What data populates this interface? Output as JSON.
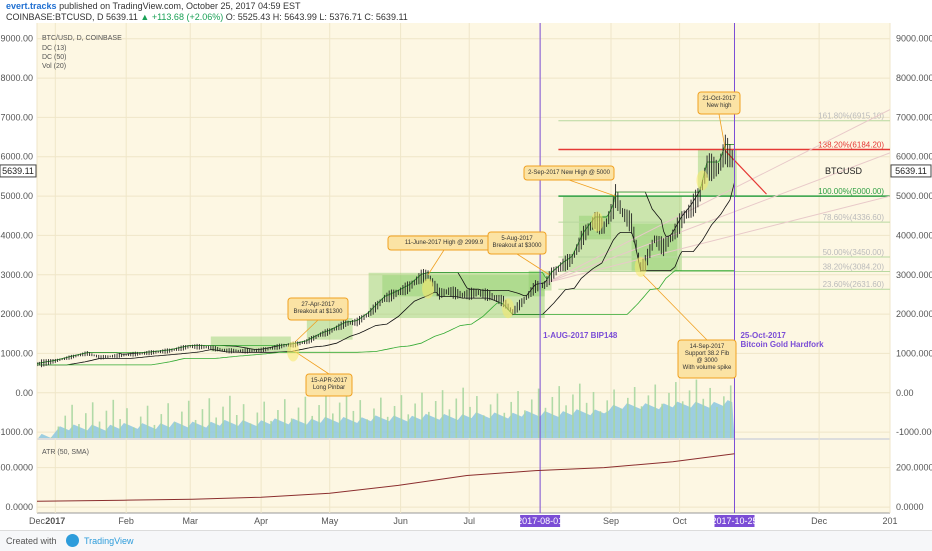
{
  "header": {
    "author": "evert.tracks",
    "published": "published on TradingView.com, October 25, 2017 04:59 EST",
    "symbol": "COINBASE:BTCUSD, D",
    "last": "5639.11",
    "change": "▲ +113.68 (+2.06%)",
    "open": "O: 5525.43",
    "high": "H: 5643.99",
    "low": "L: 5376.71",
    "close": "C: 5639.11"
  },
  "legend": {
    "title": "BTC/USD, D, COINBASE",
    "items": [
      "DC (13)",
      "DC (50)",
      "Vol (20)"
    ]
  },
  "price_tag": {
    "left": "5639.11",
    "right": "5639.11",
    "label": "BTCUSD"
  },
  "atr_label": "ATR (50, SMA)",
  "footer": {
    "created": "Created with",
    "brand": "TradingView"
  },
  "chart_data": {
    "type": "candlestick",
    "price_axis": {
      "ticks": [
        -1000,
        0,
        1000,
        2000,
        3000,
        4000,
        5000,
        6000,
        7000,
        8000,
        9000
      ],
      "tick_labels": [
        "-1000.00",
        "0.00",
        "1000.00",
        "2000.00",
        "3000.00",
        "4000.00",
        "5000.00",
        "6000.00",
        "7000.00",
        "8000.00",
        "9000.00"
      ],
      "right_tick_labels": [
        "-1000.000",
        "0.00",
        "1000.000",
        "2000.000",
        "3000.000",
        "4000.000",
        "5000.000",
        "6000.000",
        "7000.000",
        "8000.000",
        "9000.000"
      ],
      "range": [
        -1150,
        9400
      ]
    },
    "atr_axis": {
      "ticks": [
        0,
        200
      ],
      "tick_labels": [
        "0.0000",
        "200.0000"
      ],
      "range": [
        -30,
        340
      ]
    },
    "time_axis": {
      "labels": [
        "Dec",
        "2017",
        "Feb",
        "Mar",
        "Apr",
        "May",
        "Jun",
        "Jul",
        "2017-08-01",
        "Sep",
        "Oct",
        "2017-10-25",
        "Dec",
        "201"
      ],
      "positions_days": [
        -8,
        0,
        31,
        59,
        90,
        120,
        151,
        181,
        212,
        243,
        273,
        297,
        334,
        365
      ],
      "range_days": [
        -8,
        365
      ]
    },
    "price_path": [
      [
        -8,
        730
      ],
      [
        0,
        810
      ],
      [
        10,
        950
      ],
      [
        14,
        1000
      ],
      [
        20,
        900
      ],
      [
        30,
        960
      ],
      [
        40,
        1010
      ],
      [
        50,
        1070
      ],
      [
        59,
        1180
      ],
      [
        66,
        1160
      ],
      [
        75,
        1070
      ],
      [
        82,
        1060
      ],
      [
        90,
        1080
      ],
      [
        100,
        1200
      ],
      [
        105,
        1230
      ],
      [
        110,
        1300
      ],
      [
        116,
        1480
      ],
      [
        120,
        1560
      ],
      [
        127,
        1760
      ],
      [
        132,
        1800
      ],
      [
        137,
        2000
      ],
      [
        144,
        2400
      ],
      [
        150,
        2550
      ],
      [
        155,
        2700
      ],
      [
        160,
        2950
      ],
      [
        163,
        2999.9
      ],
      [
        168,
        2520
      ],
      [
        172,
        2580
      ],
      [
        178,
        2480
      ],
      [
        185,
        2550
      ],
      [
        190,
        2470
      ],
      [
        196,
        2320
      ],
      [
        200,
        2050
      ],
      [
        205,
        2350
      ],
      [
        210,
        2700
      ],
      [
        214,
        2740
      ],
      [
        217,
        3000
      ],
      [
        222,
        3250
      ],
      [
        226,
        3400
      ],
      [
        231,
        4000
      ],
      [
        236,
        4380
      ],
      [
        240,
        4200
      ],
      [
        244,
        4700
      ],
      [
        245,
        5000
      ],
      [
        248,
        4580
      ],
      [
        252,
        4300
      ],
      [
        256,
        3200
      ],
      [
        258,
        3300
      ],
      [
        262,
        3900
      ],
      [
        266,
        3700
      ],
      [
        270,
        4000
      ],
      [
        274,
        4400
      ],
      [
        278,
        4680
      ],
      [
        282,
        5050
      ],
      [
        285,
        5750
      ],
      [
        290,
        5700
      ],
      [
        293,
        6184.2
      ],
      [
        296,
        5950
      ],
      [
        297,
        5639.11
      ]
    ],
    "fib_levels": [
      {
        "label": "161.80%(6915.10)",
        "value": 6915.1
      },
      {
        "label": "138.20%(6184.20)",
        "value": 6184.2
      },
      {
        "label": "100.00%(5000.00)",
        "value": 5000
      },
      {
        "label": "78.60%(4336.60)",
        "value": 4336.6
      },
      {
        "label": "50.00%(3450.00)",
        "value": 3450
      },
      {
        "label": "38.20%(3084.20)",
        "value": 3084.2
      },
      {
        "label": "23.60%(2631.60)",
        "value": 2631.6
      }
    ],
    "annotations": [
      {
        "lines": [
          "27-Apr-2017",
          "Breakout at $1300"
        ],
        "day": 105,
        "price": 1300
      },
      {
        "lines": [
          "15-APR-2017",
          "Long Pinbar"
        ],
        "day": 104,
        "price": 1080
      },
      {
        "lines": [
          "11-June-2017 High @ 2999.9"
        ],
        "day": 163,
        "price": 2999.9
      },
      {
        "lines": [
          "5-Aug-2017",
          "Breakout at $3000"
        ],
        "day": 216,
        "price": 3000
      },
      {
        "lines": [
          "2-Sep-2017 New High @ 5000"
        ],
        "day": 245,
        "price": 5000
      },
      {
        "lines": [
          "14-Sep-2017",
          "Support 38.2 Fib",
          "@ 3000",
          "With volume spike"
        ],
        "day": 257,
        "price": 3000
      },
      {
        "lines": [
          "21-Oct-2017",
          "New high"
        ],
        "day": 293,
        "price": 6184.2
      }
    ],
    "events": [
      {
        "label": "1-AUG-2017 BIP148",
        "day": 212,
        "date": "2017-08-01"
      },
      {
        "label": "25-Oct-2017",
        "label2": "Bitcoin Gold Hardfork",
        "day": 297,
        "date": "2017-10-25"
      }
    ],
    "atr_path": [
      [
        -8,
        30
      ],
      [
        30,
        35
      ],
      [
        60,
        40
      ],
      [
        90,
        50
      ],
      [
        120,
        70
      ],
      [
        150,
        110
      ],
      [
        180,
        160
      ],
      [
        210,
        185
      ],
      [
        240,
        200
      ],
      [
        270,
        230
      ],
      [
        297,
        270
      ]
    ],
    "colors": {
      "plot_bg": "#fdf7e3",
      "fib_red": "#e53935",
      "fib_green": "#2ea043",
      "fib_light": "#b8d8a0",
      "box_green": "#8fcf6a",
      "event": "#7b4dd6",
      "vol_area": "#8cc7df",
      "atr": "#8b2e2e",
      "donchian_fast": "#111111",
      "donchian_slow": "#33aa33"
    }
  }
}
